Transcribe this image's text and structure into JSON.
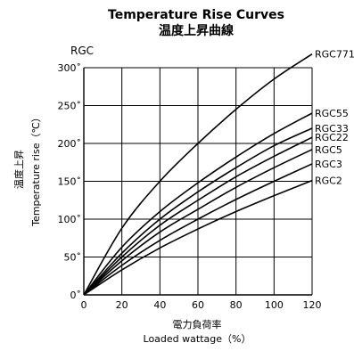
{
  "chart_data": {
    "type": "line",
    "title": "Temperature Rise Curves",
    "subtitle": "温度上昇曲線",
    "model_label": "RGC",
    "xlabel": "電力負荷率",
    "xlabel_en": "Loaded wattage（%）",
    "ylabel": "温度上昇",
    "ylabel_en": "Temperature rise（℃）",
    "xlim": [
      0,
      120
    ],
    "ylim": [
      0,
      300
    ],
    "x_ticks": [
      0,
      20,
      40,
      60,
      80,
      100,
      120
    ],
    "y_ticks": [
      0,
      50,
      100,
      150,
      200,
      250,
      300
    ],
    "x_tick_labels": [
      "0",
      "20",
      "40",
      "60",
      "80",
      "100",
      "120"
    ],
    "y_tick_labels": [
      "0˚",
      "50˚",
      "100˚",
      "150˚",
      "200˚",
      "250˚",
      "300˚"
    ],
    "grid": true,
    "x": [
      0,
      20,
      40,
      60,
      80,
      100,
      120
    ],
    "series": [
      {
        "name": "RGC771",
        "values": [
          0,
          88,
          150,
          200,
          245,
          285,
          318
        ]
      },
      {
        "name": "RGC55",
        "values": [
          0,
          63,
          110,
          148,
          182,
          213,
          240
        ]
      },
      {
        "name": "RGC33",
        "values": [
          0,
          55,
          100,
          136,
          168,
          197,
          220
        ]
      },
      {
        "name": "RGC22",
        "values": [
          0,
          50,
          92,
          125,
          156,
          183,
          208
        ]
      },
      {
        "name": "RGC5",
        "values": [
          0,
          45,
          83,
          113,
          142,
          168,
          192
        ]
      },
      {
        "name": "RGC3",
        "values": [
          0,
          39,
          72,
          100,
          126,
          150,
          173
        ]
      },
      {
        "name": "RGC2",
        "values": [
          0,
          33,
          62,
          87,
          110,
          131,
          151
        ]
      }
    ]
  }
}
